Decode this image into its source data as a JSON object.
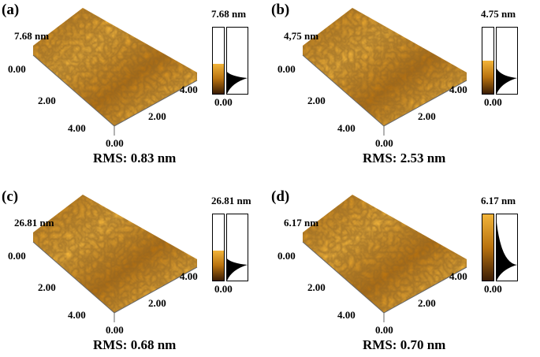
{
  "panels": [
    {
      "label": "(a)",
      "z_max_label": "7.68 nm",
      "z_axis_zero": "0.00",
      "x_ticks": [
        "2.00",
        "4.00"
      ],
      "origin": "0.00",
      "y_ticks": [
        "4.00",
        "2.00"
      ],
      "bar_max": "7.68 nm",
      "bar_min": "0.00",
      "rms": "RMS: 0.83 nm",
      "fill": 0.45
    },
    {
      "label": "(b)",
      "z_max_label": "4,75 nm",
      "z_axis_zero": "0.00",
      "x_ticks": [
        "2.00",
        "4.00"
      ],
      "origin": "0.00",
      "y_ticks": [
        "4.00",
        "2.00"
      ],
      "bar_max": "4.75 nm",
      "bar_min": "0.00",
      "rms": "RMS: 2.53 nm",
      "fill": 0.5
    },
    {
      "label": "(c)",
      "z_max_label": "26.81 nm",
      "z_axis_zero": "0.00",
      "x_ticks": [
        "2.00",
        "4.00"
      ],
      "origin": "0.00",
      "y_ticks": [
        "4.00",
        "2.00"
      ],
      "bar_max": "26.81 nm",
      "bar_min": "0.00",
      "rms": "RMS: 0.68 nm",
      "fill": 0.45
    },
    {
      "label": "(d)",
      "z_max_label": "6.17 nm",
      "z_axis_zero": "0.00",
      "x_ticks": [
        "2.00",
        "4.00"
      ],
      "origin": "0.00",
      "y_ticks": [
        "4.00",
        "2.00"
      ],
      "bar_max": "6.17 nm",
      "bar_min": "0.00",
      "rms": "RMS: 0.70 nm",
      "fill": 1.0
    }
  ],
  "colors": {
    "surface_light": "#f2b43a",
    "surface_mid": "#b8720f",
    "surface_dark": "#3a1d05"
  }
}
